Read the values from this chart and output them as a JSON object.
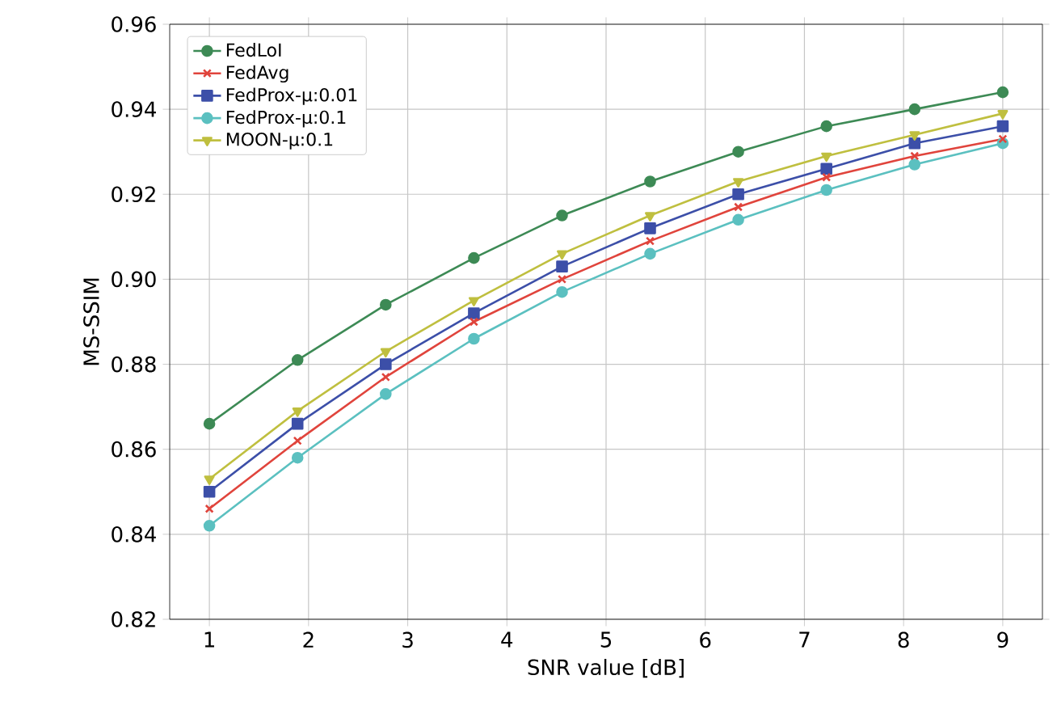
{
  "chart_data": {
    "type": "line",
    "xlabel": "SNR value [dB]",
    "ylabel": "MS-SSIM",
    "x": [
      1,
      1.889,
      2.778,
      3.667,
      4.556,
      5.444,
      6.333,
      7.222,
      8.111,
      9
    ],
    "series": [
      {
        "name": "FedLoI",
        "color": "#3d8a55",
        "marker": "circle",
        "values": [
          0.866,
          0.881,
          0.894,
          0.905,
          0.915,
          0.923,
          0.93,
          0.936,
          0.94,
          0.944
        ]
      },
      {
        "name": "FedAvg",
        "color": "#e0443c",
        "marker": "cross",
        "values": [
          0.846,
          0.862,
          0.877,
          0.89,
          0.9,
          0.909,
          0.917,
          0.924,
          0.929,
          0.933
        ]
      },
      {
        "name": "FedProx-μ:0.01",
        "color": "#3c4fa8",
        "marker": "square",
        "values": [
          0.85,
          0.866,
          0.88,
          0.892,
          0.903,
          0.912,
          0.92,
          0.926,
          0.932,
          0.936
        ]
      },
      {
        "name": "FedProx-μ:0.1",
        "color": "#5bc0c0",
        "marker": "circle",
        "values": [
          0.842,
          0.858,
          0.873,
          0.886,
          0.897,
          0.906,
          0.914,
          0.921,
          0.927,
          0.932
        ]
      },
      {
        "name": "MOON-μ:0.1",
        "color": "#bfbf3f",
        "marker": "triangle",
        "values": [
          0.853,
          0.869,
          0.883,
          0.895,
          0.906,
          0.915,
          0.923,
          0.929,
          0.934,
          0.939
        ]
      }
    ],
    "xlim": [
      0.6,
      9.4
    ],
    "ylim": [
      0.82,
      0.96
    ],
    "xticks": [
      1,
      2,
      3,
      4,
      5,
      6,
      7,
      8,
      9
    ],
    "yticks": [
      0.82,
      0.84,
      0.86,
      0.88,
      {
        "value": 0.9,
        "label": "0.90"
      },
      0.92,
      0.94,
      0.96
    ],
    "grid": true,
    "legend": "top left",
    "line_style": "solid"
  }
}
